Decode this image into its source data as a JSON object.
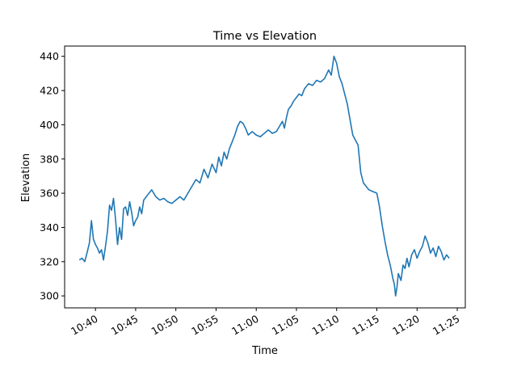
{
  "chart_data": {
    "type": "line",
    "title": "Time vs Elevation",
    "xlabel": "Time",
    "ylabel": "Elevation",
    "xlim": [
      "10:36:10",
      "11:26:00"
    ],
    "ylim": [
      293,
      446
    ],
    "x_ticks": [
      "10:40",
      "10:45",
      "10:50",
      "10:55",
      "11:00",
      "11:05",
      "11:10",
      "11:15",
      "11:20",
      "11:25"
    ],
    "y_ticks": [
      300,
      320,
      340,
      360,
      380,
      400,
      420,
      440
    ],
    "grid": false,
    "line_color": "#1f77b4",
    "series": [
      {
        "x": [
          "10:38:00",
          "10:38:20",
          "10:38:40",
          "10:39:00",
          "10:39:15",
          "10:39:30",
          "10:39:45",
          "10:40:00",
          "10:40:15",
          "10:40:30",
          "10:40:45",
          "10:41:00",
          "10:41:15",
          "10:41:30",
          "10:41:45",
          "10:42:00",
          "10:42:15",
          "10:42:30",
          "10:42:45",
          "10:43:00",
          "10:43:15",
          "10:43:30",
          "10:43:45",
          "10:44:00",
          "10:44:15",
          "10:44:30",
          "10:44:45",
          "10:45:00",
          "10:45:15",
          "10:45:30",
          "10:45:45",
          "10:46:00",
          "10:46:30",
          "10:47:00",
          "10:47:30",
          "10:48:00",
          "10:48:30",
          "10:49:00",
          "10:49:30",
          "10:50:00",
          "10:50:30",
          "10:51:00",
          "10:51:30",
          "10:52:00",
          "10:52:30",
          "10:53:00",
          "10:53:30",
          "10:54:00",
          "10:54:30",
          "10:55:00",
          "10:55:20",
          "10:55:40",
          "10:56:00",
          "10:56:20",
          "10:56:40",
          "10:57:00",
          "10:57:20",
          "10:57:40",
          "10:58:00",
          "10:58:20",
          "10:58:40",
          "10:59:00",
          "10:59:30",
          "11:00:00",
          "11:00:30",
          "11:01:00",
          "11:01:30",
          "11:02:00",
          "11:02:30",
          "11:03:00",
          "11:03:15",
          "11:03:30",
          "11:03:45",
          "11:04:00",
          "11:04:20",
          "11:04:40",
          "11:05:00",
          "11:05:20",
          "11:05:40",
          "11:06:00",
          "11:06:30",
          "11:07:00",
          "11:07:30",
          "11:08:00",
          "11:08:30",
          "11:09:00",
          "11:09:20",
          "11:09:40",
          "11:10:00",
          "11:10:20",
          "11:10:40",
          "11:11:00",
          "11:11:20",
          "11:11:40",
          "11:12:00",
          "11:12:20",
          "11:12:40",
          "11:13:00",
          "11:13:20",
          "11:13:40",
          "11:14:00",
          "11:14:30",
          "11:15:00",
          "11:15:20",
          "11:15:40",
          "11:16:00",
          "11:16:20",
          "11:16:40",
          "11:17:00",
          "11:17:10",
          "11:17:20",
          "11:17:30",
          "11:17:40",
          "11:18:00",
          "11:18:15",
          "11:18:30",
          "11:18:45",
          "11:19:00",
          "11:19:20",
          "11:19:40",
          "11:20:00",
          "11:20:20",
          "11:20:40",
          "11:21:00",
          "11:21:20",
          "11:21:40",
          "11:22:00",
          "11:22:20",
          "11:22:40",
          "11:23:00",
          "11:23:20",
          "11:23:40",
          "11:24:00"
        ],
        "y": [
          321,
          322,
          320,
          326,
          331,
          344,
          333,
          330,
          328,
          325,
          327,
          321,
          329,
          338,
          353,
          350,
          357,
          345,
          330,
          340,
          333,
          351,
          352,
          347,
          355,
          349,
          341,
          344,
          346,
          352,
          348,
          356,
          359,
          362,
          358,
          356,
          357,
          355,
          354,
          356,
          358,
          356,
          360,
          364,
          368,
          366,
          374,
          369,
          377,
          372,
          381,
          376,
          384,
          380,
          386,
          390,
          394,
          399,
          402,
          401,
          398,
          394,
          396,
          394,
          393,
          395,
          397,
          395,
          396,
          400,
          402,
          398,
          404,
          409,
          411,
          414,
          416,
          418,
          417,
          421,
          424,
          423,
          426,
          425,
          427,
          432,
          429,
          440,
          436,
          428,
          424,
          418,
          412,
          403,
          394,
          391,
          388,
          372,
          366,
          364,
          362,
          361,
          360,
          352,
          341,
          332,
          324,
          318,
          310,
          307,
          300,
          305,
          313,
          309,
          318,
          316,
          322,
          317,
          324,
          327,
          322,
          326,
          329,
          335,
          331,
          325,
          328,
          323,
          329,
          326,
          321,
          324,
          322
        ]
      }
    ]
  }
}
